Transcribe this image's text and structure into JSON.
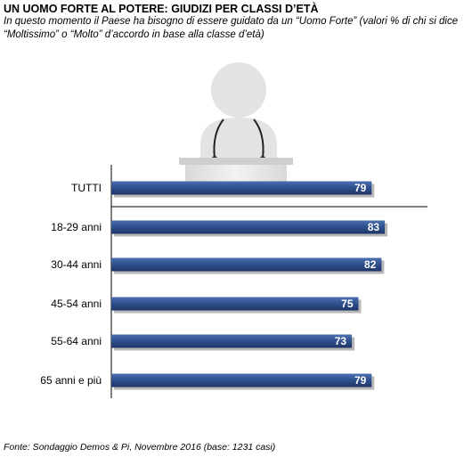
{
  "header": {
    "title": "UN UOMO FORTE AL POTERE: GIUDIZI PER CLASSI D’ETÀ",
    "subtitle": "In questo momento il Paese ha bisogno di essere guidato da un “Uomo Forte” (valori % di chi si dice “Moltissimo” o “Molto” d’accordo in base alla classe d’età)"
  },
  "footer": {
    "source": "Fonte: Sondaggio Demos & Pi, Novembre 2016 (base: 1231 casi)"
  },
  "illustration": {
    "icon": "speaker-at-podium-icon"
  },
  "colors": {
    "bar": "#2e4f8c",
    "bar_light": "#4a6eb0",
    "bar_dark": "#1d3566",
    "shadow": "#b8b8b8",
    "axis": "#000000",
    "podium": "#e6e6e6"
  },
  "chart_data": {
    "type": "bar",
    "orientation": "horizontal",
    "categories": [
      "TUTTI",
      "18-29 anni",
      "30-44 anni",
      "45-54 anni",
      "55-64 anni",
      "65 anni e più"
    ],
    "values": [
      79,
      83,
      82,
      75,
      73,
      79
    ],
    "xlim": [
      0,
      100
    ],
    "data_labels": true,
    "grid": false
  }
}
